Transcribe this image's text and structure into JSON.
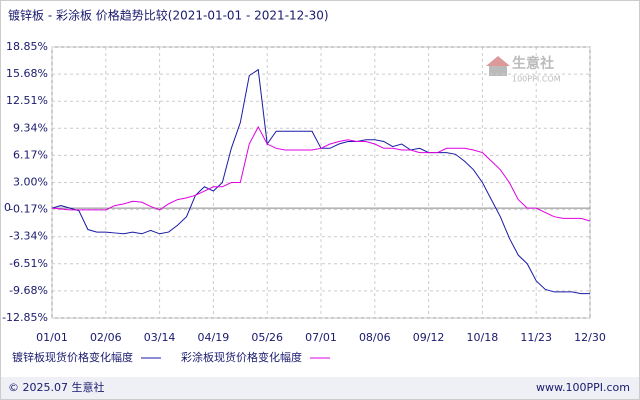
{
  "chart_data": {
    "type": "line",
    "title": "镀锌板 - 彩涂板 价格趋势比较(2021-01-01 - 2021-12-30)",
    "categories": [
      "01/01",
      null,
      null,
      null,
      null,
      null,
      "02/06",
      null,
      null,
      null,
      null,
      null,
      "03/14",
      null,
      null,
      null,
      null,
      null,
      "04/19",
      null,
      null,
      null,
      null,
      null,
      "05/26",
      null,
      null,
      null,
      null,
      null,
      "07/01",
      null,
      null,
      null,
      null,
      null,
      "08/06",
      null,
      null,
      null,
      null,
      null,
      "09/12",
      null,
      null,
      null,
      null,
      null,
      "10/18",
      null,
      null,
      null,
      null,
      null,
      "11/23",
      null,
      null,
      null,
      null,
      null,
      "12/30"
    ],
    "series": [
      {
        "name": "镀锌板现货价格变化幅度",
        "color": "#1a1aa8",
        "values": [
          0,
          0.3,
          0,
          -0.3,
          -2.5,
          -2.8,
          -2.8,
          -2.9,
          -3.0,
          -2.8,
          -3.0,
          -2.6,
          -3.0,
          -2.8,
          -2.0,
          -1.0,
          1.5,
          2.5,
          2.0,
          3.0,
          7.0,
          10,
          15.5,
          16.2,
          7.5,
          9.0,
          9.0,
          9.0,
          9.0,
          9.0,
          7.0,
          7.0,
          7.5,
          7.8,
          7.8,
          8.0,
          8.0,
          7.8,
          7.2,
          7.5,
          6.8,
          7.0,
          6.5,
          6.5,
          6.5,
          6.3,
          5.5,
          4.5,
          3.0,
          1.0,
          -1.0,
          -3.5,
          -5.5,
          -6.5,
          -8.5,
          -9.5,
          -9.8,
          -9.8,
          -9.8,
          -10,
          -10
        ]
      },
      {
        "name": "彩涂板现货价格变化幅度",
        "color": "#e000e0",
        "values": [
          0,
          -0.1,
          -0.2,
          -0.2,
          -0.2,
          -0.2,
          -0.2,
          0.3,
          0.5,
          0.8,
          0.7,
          0.2,
          -0.2,
          0.5,
          1.0,
          1.2,
          1.5,
          2.0,
          2.5,
          2.5,
          3.0,
          3.0,
          7.5,
          9.5,
          7.5,
          7.0,
          6.8,
          6.8,
          6.8,
          6.8,
          7.0,
          7.5,
          7.8,
          8.0,
          7.8,
          7.8,
          7.5,
          7.0,
          7.0,
          6.8,
          6.8,
          6.5,
          6.5,
          6.5,
          7.0,
          7.0,
          7.0,
          6.8,
          6.5,
          5.5,
          4.5,
          3.0,
          1.0,
          0,
          0,
          -0.5,
          -1.0,
          -1.2,
          -1.2,
          -1.2,
          -1.5
        ]
      }
    ],
    "ylim": [
      -12.85,
      18.85
    ],
    "yticks": [
      {
        "value": 18.85,
        "label": "18.85%"
      },
      {
        "value": 15.68,
        "label": "15.68%"
      },
      {
        "value": 12.51,
        "label": "12.51%"
      },
      {
        "value": 9.34,
        "label": "9.34%"
      },
      {
        "value": 6.17,
        "label": "6.17%"
      },
      {
        "value": 3.0,
        "label": "3.00%"
      },
      {
        "value": -0.17,
        "label": "-0.17%"
      },
      {
        "value": -3.34,
        "label": "-3.34%"
      },
      {
        "value": -6.51,
        "label": "-6.51%"
      },
      {
        "value": -9.68,
        "label": "-9.68%"
      },
      {
        "value": -12.85,
        "label": "-12.85%"
      }
    ],
    "zero_line": {
      "value": 0,
      "label": "0"
    },
    "grid": true,
    "watermark": [
      "生意社",
      "100PPI.COM"
    ],
    "footer_left": "© 2025.07 生意社",
    "footer_right": "www.100PPI.com"
  }
}
